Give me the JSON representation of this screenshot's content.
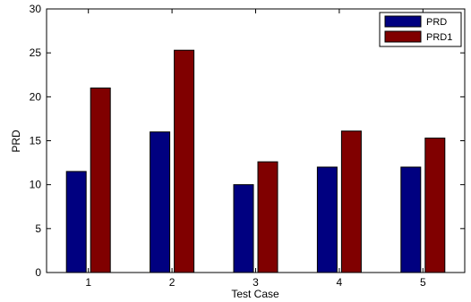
{
  "chart_data": {
    "type": "bar",
    "title": "",
    "xlabel": "Test Case",
    "ylabel": "PRD",
    "categories": [
      "1",
      "2",
      "3",
      "4",
      "5"
    ],
    "ylim": [
      0,
      30
    ],
    "yticks": [
      "0",
      "5",
      "10",
      "15",
      "20",
      "25",
      "30"
    ],
    "grid": false,
    "legend_position": "top-right",
    "series": [
      {
        "name": "PRD",
        "color": "#000080",
        "values": [
          11.5,
          16.0,
          10.0,
          12.0,
          12.0
        ]
      },
      {
        "name": "PRD1",
        "color": "#800000",
        "values": [
          21.0,
          25.3,
          12.6,
          16.1,
          15.3
        ]
      }
    ]
  }
}
